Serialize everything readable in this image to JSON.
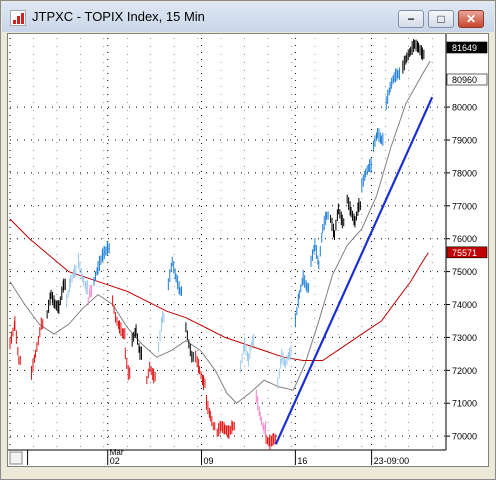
{
  "window": {
    "title": "JTPXC - TOPIX Index, 15 Min",
    "minimize_glyph": "−",
    "maximize_glyph": "□",
    "close_glyph": "✕"
  },
  "chart_data": {
    "type": "line",
    "title": "JTPXC - TOPIX Index, 15 Min",
    "ylim": [
      69700,
      82100
    ],
    "y_ticks": [
      70000,
      71000,
      72000,
      73000,
      74000,
      75000,
      76000,
      77000,
      78000,
      79000,
      80000
    ],
    "y_tick_labels": [
      "70000",
      "71000",
      "72000",
      "73000",
      "74000",
      "75000",
      "76000",
      "77000",
      "78000",
      "79000",
      "80000"
    ],
    "x_month_label": "Mar",
    "x_tick_labels": [
      "02",
      "09",
      "16",
      "23-09:00"
    ],
    "price_labels": [
      {
        "value": 81649,
        "text": "81649"
      },
      {
        "value": 80960,
        "text": "80960"
      },
      {
        "value": 75571,
        "text": "75571"
      }
    ],
    "grid": true,
    "colors": {
      "up": "#1e7fd8",
      "down": "#e01010",
      "neutral": "#000000",
      "faded_up": "#9cc8ec",
      "faded_down": "#f080c8",
      "ma_short": "#808080",
      "ma_long": "#c00000",
      "trendline": "#1c2fd6"
    },
    "series": [
      {
        "type": "bar",
        "segments": [
          {
            "color": "down",
            "points": [
              [
                0,
                72800
              ],
              [
                5,
                73400
              ],
              [
                9,
                72300
              ]
            ]
          },
          {
            "color": "down",
            "points": [
              [
                22,
                71900
              ],
              [
                26,
                72500
              ],
              [
                29,
                72900
              ],
              [
                32,
                73400
              ]
            ]
          },
          {
            "color": "neutral",
            "points": [
              [
                38,
                73700
              ],
              [
                42,
                74300
              ],
              [
                46,
                74000
              ],
              [
                50,
                73900
              ],
              [
                55,
                74600
              ]
            ]
          },
          {
            "color": "faded_up",
            "points": [
              [
                58,
                74100
              ],
              [
                62,
                74700
              ],
              [
                66,
                75000
              ]
            ]
          },
          {
            "color": "faded_up",
            "points": [
              [
                70,
                75300
              ],
              [
                74,
                74800
              ],
              [
                78,
                74500
              ]
            ]
          },
          {
            "color": "faded_down",
            "points": [
              [
                80,
                74100
              ],
              [
                82,
                74400
              ]
            ]
          },
          {
            "color": "up",
            "points": [
              [
                86,
                74700
              ],
              [
                90,
                75100
              ],
              [
                95,
                75500
              ],
              [
                100,
                75700
              ]
            ]
          },
          {
            "color": "down",
            "points": [
              [
                105,
                74100
              ],
              [
                108,
                73600
              ],
              [
                112,
                73300
              ],
              [
                116,
                73100
              ]
            ]
          },
          {
            "color": "down",
            "points": [
              [
                118,
                72500
              ],
              [
                121,
                71900
              ]
            ]
          },
          {
            "color": "neutral",
            "points": [
              [
                125,
                72900
              ],
              [
                129,
                73200
              ],
              [
                133,
                72500
              ]
            ]
          },
          {
            "color": "down",
            "points": [
              [
                140,
                71700
              ],
              [
                143,
                72100
              ],
              [
                147,
                71800
              ]
            ]
          },
          {
            "color": "faded_up",
            "points": [
              [
                152,
                72700
              ],
              [
                156,
                73600
              ]
            ]
          },
          {
            "color": "up",
            "points": [
              [
                162,
                74600
              ],
              [
                166,
                75300
              ],
              [
                170,
                74800
              ],
              [
                174,
                74400
              ]
            ]
          },
          {
            "color": "neutral",
            "points": [
              [
                180,
                73300
              ],
              [
                183,
                72800
              ],
              [
                186,
                72400
              ]
            ]
          },
          {
            "color": "down",
            "points": [
              [
                190,
                72400
              ],
              [
                194,
                72000
              ],
              [
                198,
                71600
              ]
            ]
          },
          {
            "color": "down",
            "points": [
              [
                201,
                71000
              ],
              [
                205,
                70600
              ],
              [
                208,
                70300
              ]
            ]
          },
          {
            "color": "down",
            "points": [
              [
                212,
                70100
              ],
              [
                216,
                70300
              ],
              [
                220,
                70200
              ],
              [
                224,
                70100
              ],
              [
                228,
                70300
              ]
            ]
          },
          {
            "color": "faded_up",
            "points": [
              [
                236,
                72100
              ],
              [
                240,
                72800
              ],
              [
                244,
                72300
              ],
              [
                248,
                72900
              ]
            ]
          },
          {
            "color": "faded_down",
            "points": [
              [
                252,
                71200
              ],
              [
                256,
                70600
              ],
              [
                260,
                70200
              ]
            ]
          },
          {
            "color": "down",
            "points": [
              [
                262,
                69900
              ],
              [
                266,
                69800
              ],
              [
                270,
                69900
              ]
            ]
          },
          {
            "color": "faded_up",
            "points": [
              [
                274,
                71600
              ],
              [
                278,
                72400
              ],
              [
                282,
                72200
              ],
              [
                286,
                72500
              ]
            ]
          },
          {
            "color": "up",
            "points": [
              [
                292,
                73500
              ],
              [
                296,
                74300
              ],
              [
                300,
                74800
              ],
              [
                304,
                74500
              ]
            ]
          },
          {
            "color": "up",
            "points": [
              [
                308,
                75300
              ],
              [
                312,
                75800
              ],
              [
                316,
                75200
              ],
              [
                320,
                76300
              ],
              [
                324,
                76700
              ]
            ]
          },
          {
            "color": "neutral",
            "points": [
              [
                328,
                76600
              ],
              [
                332,
                76100
              ],
              [
                336,
                76900
              ],
              [
                340,
                76500
              ]
            ]
          },
          {
            "color": "neutral",
            "points": [
              [
                345,
                77200
              ],
              [
                349,
                76800
              ],
              [
                353,
                76500
              ],
              [
                357,
                77000
              ]
            ]
          },
          {
            "color": "up",
            "points": [
              [
                360,
                77600
              ],
              [
                364,
                78000
              ],
              [
                368,
                78200
              ]
            ]
          },
          {
            "color": "up",
            "points": [
              [
                372,
                78800
              ],
              [
                376,
                79200
              ],
              [
                380,
                79000
              ]
            ]
          },
          {
            "color": "up",
            "points": [
              [
                385,
                80100
              ],
              [
                389,
                80600
              ],
              [
                393,
                80900
              ],
              [
                397,
                81000
              ]
            ]
          },
          {
            "color": "neutral",
            "points": [
              [
                402,
                81200
              ],
              [
                406,
                81500
              ],
              [
                410,
                81700
              ],
              [
                414,
                81900
              ],
              [
                418,
                81800
              ],
              [
                422,
                81600
              ]
            ]
          }
        ]
      },
      {
        "name": "",
        "type": "ma_short",
        "points": [
          [
            0,
            74700
          ],
          [
            15,
            74000
          ],
          [
            30,
            73400
          ],
          [
            45,
            73100
          ],
          [
            60,
            73400
          ],
          [
            75,
            73900
          ],
          [
            90,
            74300
          ],
          [
            105,
            74000
          ],
          [
            120,
            73300
          ],
          [
            135,
            72800
          ],
          [
            150,
            72400
          ],
          [
            165,
            72600
          ],
          [
            180,
            72900
          ],
          [
            195,
            72600
          ],
          [
            210,
            72000
          ],
          [
            222,
            71300
          ],
          [
            232,
            71000
          ],
          [
            245,
            71300
          ],
          [
            260,
            71700
          ],
          [
            275,
            71500
          ],
          [
            290,
            71400
          ],
          [
            302,
            72200
          ],
          [
            315,
            73400
          ],
          [
            330,
            74900
          ],
          [
            345,
            75800
          ],
          [
            360,
            76300
          ],
          [
            375,
            77300
          ],
          [
            390,
            78800
          ],
          [
            405,
            80100
          ],
          [
            420,
            80900
          ],
          [
            430,
            81400
          ]
        ]
      },
      {
        "name": "",
        "type": "ma_long",
        "points": [
          [
            0,
            76600
          ],
          [
            20,
            76000
          ],
          [
            40,
            75500
          ],
          [
            60,
            75000
          ],
          [
            80,
            74800
          ],
          [
            100,
            74600
          ],
          [
            120,
            74400
          ],
          [
            140,
            74100
          ],
          [
            160,
            73800
          ],
          [
            180,
            73600
          ],
          [
            200,
            73300
          ],
          [
            220,
            73000
          ],
          [
            240,
            72800
          ],
          [
            260,
            72600
          ],
          [
            280,
            72400
          ],
          [
            300,
            72300
          ],
          [
            320,
            72300
          ],
          [
            340,
            72700
          ],
          [
            360,
            73100
          ],
          [
            380,
            73500
          ],
          [
            395,
            74100
          ],
          [
            410,
            74700
          ],
          [
            420,
            75200
          ],
          [
            428,
            75571
          ]
        ]
      },
      {
        "name": "",
        "type": "trendline",
        "points": [
          [
            272,
            69750
          ],
          [
            432,
            80300
          ]
        ]
      }
    ]
  }
}
